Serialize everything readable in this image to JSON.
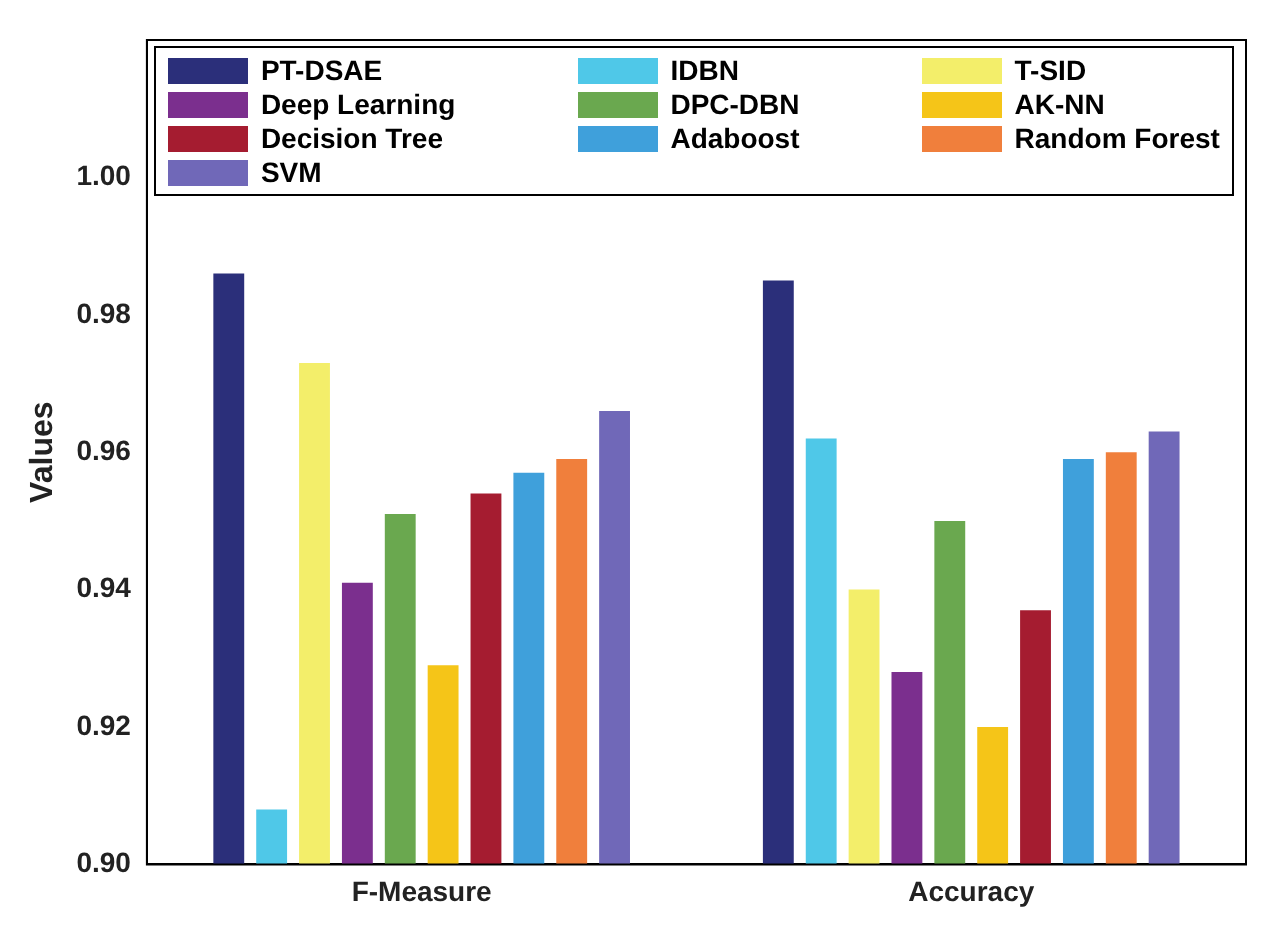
{
  "chart_data": {
    "type": "bar",
    "ylabel": "Values",
    "categories": [
      "F-Measure",
      "Accuracy"
    ],
    "series": [
      {
        "name": "PT-DSAE",
        "color": "#2b2f7a",
        "values": [
          0.986,
          0.985
        ]
      },
      {
        "name": "IDBN",
        "color": "#4fc8e8",
        "values": [
          0.908,
          0.962
        ]
      },
      {
        "name": "T-SID",
        "color": "#f3ee6a",
        "values": [
          0.973,
          0.94
        ]
      },
      {
        "name": "Deep Learning",
        "color": "#7b2f8e",
        "values": [
          0.941,
          0.928
        ]
      },
      {
        "name": "DPC-DBN",
        "color": "#6aa84f",
        "values": [
          0.951,
          0.95
        ]
      },
      {
        "name": "AK-NN",
        "color": "#f5c518",
        "values": [
          0.929,
          0.92
        ]
      },
      {
        "name": "Decision Tree",
        "color": "#a51c30",
        "values": [
          0.954,
          0.937
        ]
      },
      {
        "name": "Adaboost",
        "color": "#3fa0db",
        "values": [
          0.957,
          0.959
        ]
      },
      {
        "name": "Random Forest",
        "color": "#f07f3c",
        "values": [
          0.959,
          0.96
        ]
      },
      {
        "name": "SVM",
        "color": "#7068b8",
        "values": [
          0.966,
          0.963
        ]
      }
    ],
    "ylim": [
      0.9,
      1.02
    ],
    "yticks": [
      {
        "value": 0.9,
        "label": "0.90"
      },
      {
        "value": 0.92,
        "label": "0.92"
      },
      {
        "value": 0.94,
        "label": "0.94"
      },
      {
        "value": 0.96,
        "label": "0.96"
      },
      {
        "value": 0.98,
        "label": "0.98"
      },
      {
        "value": 1.0,
        "label": "1.00"
      }
    ],
    "grid": false,
    "legend": "top"
  }
}
